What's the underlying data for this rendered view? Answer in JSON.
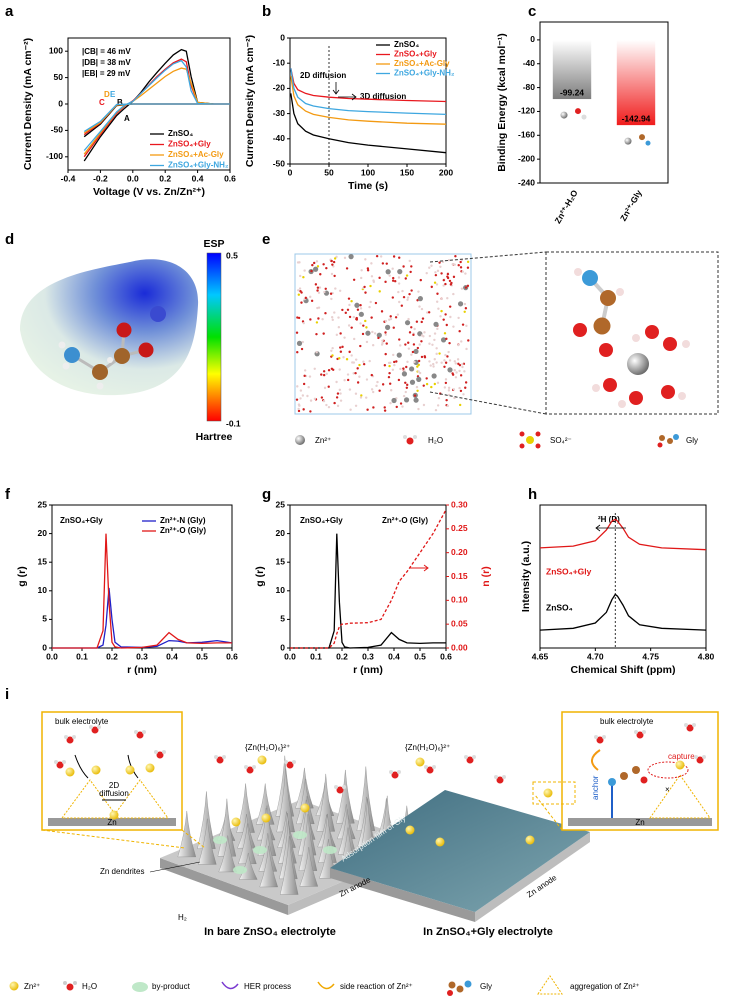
{
  "chart_data": [
    {
      "label": "a",
      "type": "line",
      "xlabel": "Voltage (V vs. Zn/Zn²⁺)",
      "ylabel": "Current Density (mA cm⁻²)",
      "xlim": [
        -0.4,
        0.6
      ],
      "ylim": [
        -125,
        125
      ],
      "xticks": [
        -0.4,
        -0.2,
        {
          "value": 0,
          "label": "0.0"
        },
        0.2,
        0.4,
        0.6
      ],
      "yticks": [
        -100,
        -50,
        0,
        50,
        100
      ],
      "annotations": [
        "|CB| = 46 mV",
        "|DB| = 38 mV",
        "|EB| = 29 mV",
        "C",
        "D",
        "E",
        "B",
        "A"
      ],
      "series": [
        {
          "name": "ZnSO₄",
          "color": "#000000",
          "x": [
            -0.3,
            -0.2,
            -0.1,
            -0.05,
            0,
            0.05,
            0.1,
            0.15,
            0.2,
            0.25,
            0.3,
            0.33,
            0.36,
            0.4,
            0.5,
            0.6,
            0.4,
            0.2,
            0,
            -0.1,
            -0.2,
            -0.3
          ],
          "values": [
            -108,
            -62,
            -22,
            -8,
            5,
            22,
            42,
            60,
            77,
            93,
            103,
            100,
            52,
            3,
            0,
            0,
            0,
            0,
            0,
            -3,
            -38,
            -62
          ]
        },
        {
          "name": "ZnSO₄+Gly",
          "color": "#e8181e",
          "x": [
            -0.3,
            -0.2,
            -0.1,
            -0.05,
            0,
            0.05,
            0.1,
            0.15,
            0.2,
            0.25,
            0.3,
            0.33,
            0.36,
            0.4,
            0.5,
            0.6,
            0.4,
            0.2,
            0,
            -0.1,
            -0.2,
            -0.3
          ],
          "values": [
            -100,
            -58,
            -18,
            -4,
            6,
            20,
            36,
            52,
            66,
            78,
            85,
            80,
            35,
            2,
            0,
            0,
            0,
            0,
            0,
            -2,
            -36,
            -58
          ]
        },
        {
          "name": "ZnSO₄+Ac-Gly",
          "color": "#f39a12",
          "x": [
            -0.3,
            -0.2,
            -0.1,
            -0.05,
            0,
            0.05,
            0.1,
            0.15,
            0.2,
            0.25,
            0.3,
            0.33,
            0.36,
            0.4,
            0.5,
            0.6,
            0.4,
            0.2,
            0,
            -0.1,
            -0.2,
            -0.3
          ],
          "values": [
            -95,
            -55,
            -16,
            -3,
            5,
            16,
            28,
            40,
            52,
            62,
            68,
            66,
            40,
            3,
            0,
            0,
            0,
            0,
            0,
            -2,
            -35,
            -55
          ]
        },
        {
          "name": "ZnSO₄+Gly-NH₂",
          "color": "#3ea7e0",
          "x": [
            -0.3,
            -0.2,
            -0.1,
            -0.05,
            0,
            0.05,
            0.1,
            0.15,
            0.2,
            0.25,
            0.3,
            0.33,
            0.36,
            0.4,
            0.5,
            0.6,
            0.4,
            0.2,
            0,
            -0.1,
            -0.2,
            -0.3
          ],
          "values": [
            -88,
            -52,
            -15,
            -2,
            5,
            20,
            35,
            50,
            64,
            76,
            82,
            70,
            25,
            1,
            0,
            0,
            0,
            0,
            0,
            -1,
            -33,
            -52
          ]
        }
      ]
    },
    {
      "label": "b",
      "type": "line",
      "xlabel": "Time (s)",
      "ylabel": "Current Density (mA cm⁻²)",
      "xlim": [
        0,
        200
      ],
      "ylim": [
        -50,
        0
      ],
      "xticks": [
        0,
        50,
        100,
        150,
        200
      ],
      "yticks": [
        0,
        -10,
        -20,
        -30,
        -40,
        -50
      ],
      "vline": 50,
      "annotations": [
        "2D diffusion",
        "3D diffusion"
      ],
      "x": [
        1,
        5,
        10,
        20,
        30,
        50,
        75,
        100,
        150,
        200
      ],
      "series": [
        {
          "name": "ZnSO₄",
          "color": "#000000",
          "values": [
            -22,
            -30,
            -34,
            -37,
            -38.5,
            -40,
            -41.5,
            -42.5,
            -44,
            -45.5
          ]
        },
        {
          "name": "ZnSO₄+Gly",
          "color": "#e8181e",
          "values": [
            -12,
            -18,
            -20.5,
            -22,
            -22.8,
            -23.5,
            -24,
            -24.3,
            -24.8,
            -25.2
          ]
        },
        {
          "name": "ZnSO₄+Ac-Gly",
          "color": "#f39a12",
          "values": [
            -15,
            -23,
            -26.5,
            -29,
            -30.3,
            -31.5,
            -32.5,
            -33,
            -33.8,
            -34.2
          ]
        },
        {
          "name": "ZnSO₄+Gly-NH₂",
          "color": "#3ea7e0",
          "values": [
            -12,
            -20,
            -23.5,
            -26,
            -27,
            -28,
            -28.8,
            -29.2,
            -29.8,
            -30.3
          ]
        }
      ]
    },
    {
      "label": "c",
      "type": "bar",
      "ylabel": "Binding Energy (kcal mol⁻¹)",
      "categories": [
        "Zn²⁺-H₂O",
        "Zn²⁺-Gly"
      ],
      "values": [
        -99.24,
        -142.94
      ],
      "colors": [
        "#7c7c7c",
        "#f01c1c"
      ],
      "ylim": [
        -240,
        30
      ],
      "yticks": [
        0,
        -40,
        -80,
        -120,
        -160,
        -200,
        -240
      ]
    },
    {
      "label": "f",
      "type": "line",
      "xlabel": "r (nm)",
      "ylabel": "g (r)",
      "xlim": [
        0,
        0.6
      ],
      "ylim": [
        0,
        25
      ],
      "xticks": [
        {
          "value": 0,
          "label": "0.0"
        },
        0.1,
        0.2,
        0.3,
        0.4,
        0.5,
        0.6
      ],
      "yticks": [
        0,
        5,
        10,
        15,
        20,
        25
      ],
      "annotations": [
        "ZnSO₄+Gly"
      ],
      "x": [
        0,
        0.15,
        0.17,
        0.18,
        0.19,
        0.2,
        0.21,
        0.23,
        0.3,
        0.35,
        0.39,
        0.42,
        0.45,
        0.5,
        0.55,
        0.6
      ],
      "series": [
        {
          "name": "Zn²⁺-N (Gly)",
          "color": "#1f1fc8",
          "values": [
            0,
            0,
            0.5,
            4,
            10.5,
            5,
            1,
            0.2,
            0.1,
            0.3,
            1.3,
            1.2,
            0.9,
            1,
            1.3,
            0.9
          ]
        },
        {
          "name": "Zn²⁺-O (Gly)",
          "color": "#e01818",
          "values": [
            0,
            0,
            3,
            20,
            8,
            1,
            0.2,
            0,
            0.1,
            0.5,
            2.7,
            1.5,
            0.9,
            0.8,
            0.9,
            0.9
          ]
        }
      ]
    },
    {
      "label": "g",
      "type": "line",
      "xlabel": "r (nm)",
      "ylabel": "g (r)",
      "y2label": "n (r)",
      "xlim": [
        0,
        0.6
      ],
      "ylim": [
        0,
        25
      ],
      "y2lim": [
        0,
        0.3
      ],
      "xticks": [
        {
          "value": 0,
          "label": "0.0"
        },
        0.1,
        0.2,
        0.3,
        0.4,
        0.5,
        0.6
      ],
      "yticks": [
        0,
        5,
        10,
        15,
        20,
        25
      ],
      "y2ticks": [
        {
          "value": 0,
          "label": "0.00"
        },
        0.05,
        {
          "value": 0.1,
          "label": "0.10"
        },
        0.15,
        {
          "value": 0.2,
          "label": "0.20"
        },
        0.25,
        {
          "value": 0.3,
          "label": "0.30"
        }
      ],
      "annotations": [
        "ZnSO₄+Gly",
        "Zn²⁺-O (Gly)"
      ],
      "x": [
        0,
        0.15,
        0.17,
        0.18,
        0.19,
        0.2,
        0.21,
        0.23,
        0.3,
        0.35,
        0.39,
        0.42,
        0.45,
        0.5,
        0.55,
        0.6
      ],
      "series": [
        {
          "color": "#000000",
          "values": [
            0,
            0,
            3,
            20,
            8,
            1,
            0.2,
            0,
            0.1,
            0.5,
            2.7,
            1.5,
            0.9,
            0.8,
            0.9,
            0.9
          ]
        },
        {
          "color": "#e01818",
          "axis": "y2",
          "dashed": true,
          "values": [
            0,
            0,
            0.01,
            0.03,
            0.045,
            0.05,
            0.05,
            0.052,
            0.053,
            0.06,
            0.1,
            0.14,
            0.16,
            0.2,
            0.24,
            0.29
          ]
        }
      ]
    },
    {
      "label": "h",
      "type": "line",
      "xlabel": "Chemical Shift (ppm)",
      "ylabel": "Intensity (a.u.)",
      "xlim": [
        4.65,
        4.8
      ],
      "ylim": [
        0,
        8
      ],
      "xticks": [
        4.65,
        {
          "value": 4.7,
          "label": "4.70"
        },
        4.75,
        {
          "value": 4.8,
          "label": "4.80"
        }
      ],
      "vline": 4.718,
      "annotations": [
        "²H (D)"
      ],
      "x": [
        4.65,
        4.68,
        4.7,
        4.71,
        4.715,
        4.718,
        4.72,
        4.725,
        4.73,
        4.74,
        4.76,
        4.8
      ],
      "series": [
        {
          "name": "ZnSO₄+Gly",
          "color": "#e01818",
          "values": [
            5.6,
            5.7,
            6.0,
            6.6,
            7.1,
            7.2,
            7.1,
            6.7,
            6.2,
            5.8,
            5.6,
            5.5
          ]
        },
        {
          "name": "ZnSO₄",
          "color": "#000000",
          "values": [
            1.0,
            1.1,
            1.4,
            2.0,
            2.7,
            3.0,
            2.9,
            2.4,
            1.8,
            1.3,
            1.1,
            1.0
          ]
        }
      ]
    }
  ],
  "esp_panel": {
    "label": "d",
    "title": "ESP",
    "max": 0.5,
    "min": -0.1,
    "unit": "Hartree"
  },
  "md_panel": {
    "label": "e",
    "legend": [
      "Zn²⁺",
      "H₂O",
      "SO₄²⁻",
      "Gly"
    ]
  },
  "schematic": {
    "label": "i",
    "inset_left": {
      "title": "bulk electrolyte",
      "diffusion": [
        "2D",
        "diffusion"
      ],
      "substrate": "Zn"
    },
    "inset_right": {
      "title": "bulk electrolyte",
      "capture": "capture",
      "anchor": "anchor",
      "substrate": "Zn"
    },
    "solvation": [
      "{Zn(H₂O)₆}²⁺",
      "{Zn(H₂O)₆}²⁺"
    ],
    "dendrites": "Zn dendrites",
    "gas": "H₂",
    "anode": [
      "Zn anode",
      "Zn anode"
    ],
    "film": "Adsorption film of Gly",
    "captions": [
      "In bare ZnSO₄ electrolyte",
      "In ZnSO₄+Gly electrolyte"
    ],
    "legend": [
      "Zn²⁺",
      "H₂O",
      "by-product",
      "HER process",
      "side reaction of Zn²⁺",
      "Gly",
      "aggregation of Zn²⁺"
    ]
  }
}
